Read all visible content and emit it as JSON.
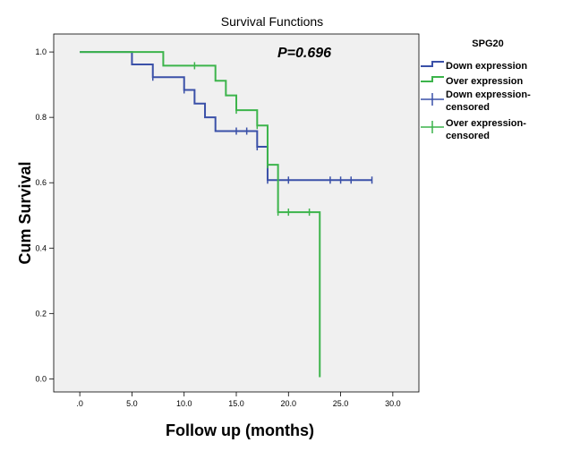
{
  "chart_data": {
    "type": "line",
    "subtype": "kaplan-meier",
    "title": "Survival Functions",
    "xlabel": "Follow up (months)",
    "ylabel": "Cum Survival",
    "xlim": [
      -2.5,
      32.5
    ],
    "ylim": [
      -0.04,
      1.055
    ],
    "xticks": [
      0,
      5,
      10,
      15,
      20,
      25,
      30
    ],
    "xtick_labels": [
      ".0",
      "5.0",
      "10.0",
      "15.0",
      "20.0",
      "25.0",
      "30.0"
    ],
    "yticks": [
      0,
      0.2,
      0.4,
      0.6,
      0.8,
      1.0
    ],
    "ytick_labels": [
      "0.0",
      "0.2",
      "0.4",
      "0.6",
      "0.8",
      "1.0"
    ],
    "annotation": "P=0.696",
    "legend": {
      "title": "SPG20",
      "position": "right",
      "entries": [
        "Down expression",
        "Over expression",
        "Down expression-censored",
        "Over expression-censored"
      ]
    },
    "plot_background": "#f0f0f0",
    "series": [
      {
        "name": "Down expression",
        "color": "#3a50a8",
        "steps": [
          [
            0,
            1.0
          ],
          [
            5,
            0.962
          ],
          [
            7,
            0.923
          ],
          [
            10,
            0.884
          ],
          [
            11,
            0.842
          ],
          [
            12,
            0.8
          ],
          [
            13,
            0.758
          ],
          [
            17,
            0.71
          ],
          [
            18,
            0.608
          ],
          [
            28,
            0.608
          ]
        ],
        "censored": [
          [
            7,
            0.923
          ],
          [
            10,
            0.884
          ],
          [
            15,
            0.758
          ],
          [
            16,
            0.758
          ],
          [
            17,
            0.71
          ],
          [
            18,
            0.608
          ],
          [
            20,
            0.608
          ],
          [
            24,
            0.608
          ],
          [
            25,
            0.608
          ],
          [
            26,
            0.608
          ],
          [
            28,
            0.608
          ]
        ]
      },
      {
        "name": "Over expression",
        "color": "#3cb44b",
        "steps": [
          [
            0,
            1.0
          ],
          [
            8,
            0.958
          ],
          [
            13,
            0.912
          ],
          [
            14,
            0.867
          ],
          [
            15,
            0.822
          ],
          [
            17,
            0.775
          ],
          [
            18,
            0.655
          ],
          [
            19,
            0.51
          ],
          [
            23,
            0.51
          ],
          [
            23,
            0.005
          ]
        ],
        "censored": [
          [
            11,
            0.958
          ],
          [
            15,
            0.822
          ],
          [
            17,
            0.775
          ],
          [
            18,
            0.655
          ],
          [
            19,
            0.51
          ],
          [
            20,
            0.51
          ],
          [
            22,
            0.51
          ]
        ]
      }
    ]
  }
}
